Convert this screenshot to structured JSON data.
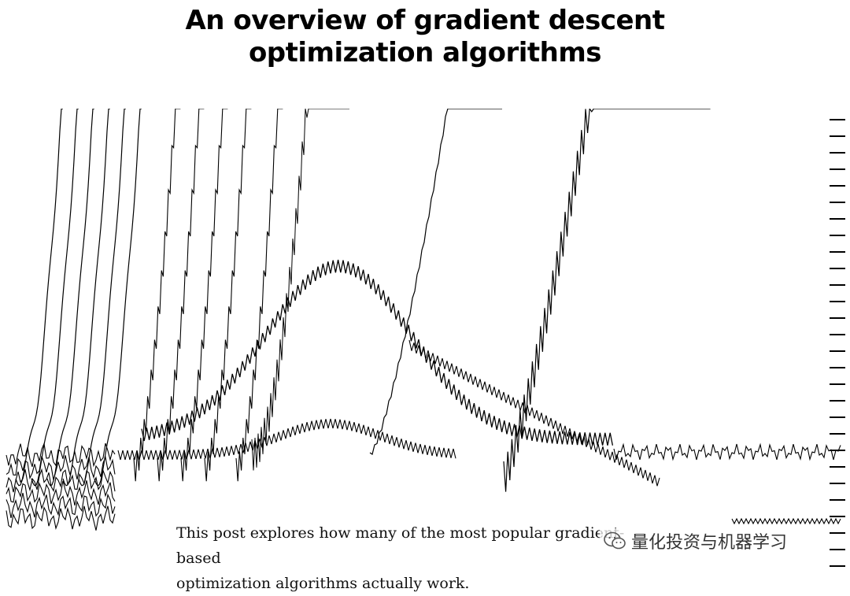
{
  "title": {
    "line1": "An overview of gradient descent",
    "line2": "optimization algorithms"
  },
  "caption": {
    "line1": "This post explores how many of the most popular gradient-based",
    "line2": "optimization algorithms actually work."
  },
  "watermark": {
    "text": "量化投资与机器学习",
    "icon": "wechat-icon"
  },
  "colors": {
    "ink": "#000000",
    "background": "#ffffff"
  }
}
